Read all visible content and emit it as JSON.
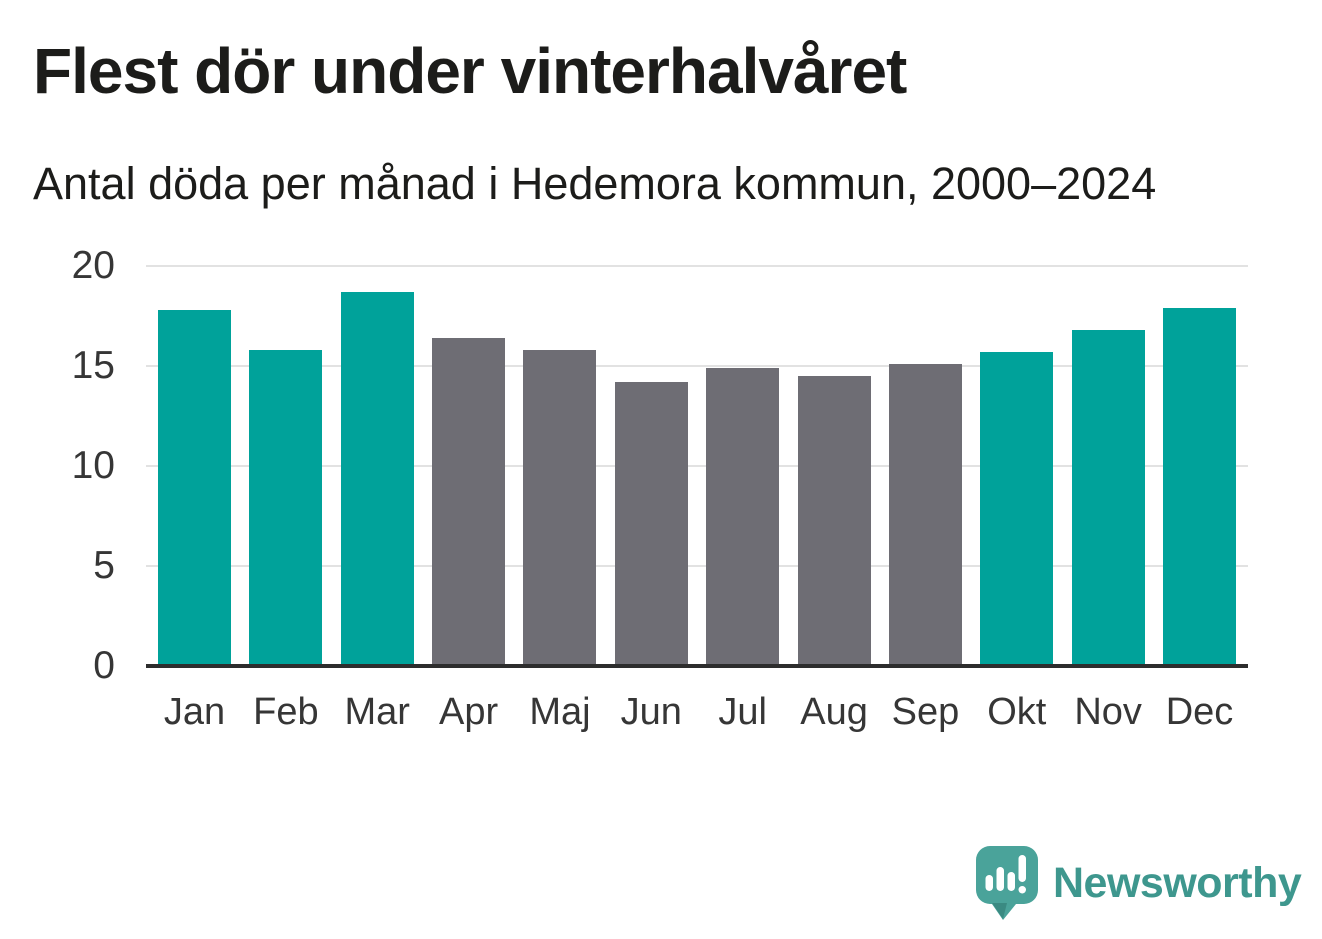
{
  "title": "Flest dör under vinterhalvåret",
  "subtitle": "Antal döda per månad i Hedemora kommun, 2000–2024",
  "brand": {
    "name": "Newsworthy",
    "logo_icon": "speech-bubble-bar-chart-icon"
  },
  "colors": {
    "winter": "#00a29a",
    "summer": "#6e6d74",
    "grid": "#e2e2e2",
    "axis": "#2d2d2d",
    "text": "#1c1c1a",
    "tick": "#363636",
    "brand_teal": "#3e978e",
    "logo_bubble": "#4aa39a",
    "logo_bubble_shade": "#3a8a82",
    "logo_glyphs": "#ffffff"
  },
  "chart_data": {
    "type": "bar",
    "title": "Flest dör under vinterhalvåret",
    "subtitle": "Antal döda per månad i Hedemora kommun, 2000–2024",
    "categories": [
      "Jan",
      "Feb",
      "Mar",
      "Apr",
      "Maj",
      "Jun",
      "Jul",
      "Aug",
      "Sep",
      "Okt",
      "Nov",
      "Dec"
    ],
    "values": [
      17.8,
      15.8,
      18.7,
      16.4,
      15.8,
      14.2,
      14.9,
      14.5,
      15.1,
      15.7,
      16.8,
      17.9
    ],
    "series_colors": [
      "winter",
      "winter",
      "winter",
      "summer",
      "summer",
      "summer",
      "summer",
      "summer",
      "summer",
      "winter",
      "winter",
      "winter"
    ],
    "xlabel": "",
    "ylabel": "",
    "ylim": [
      0,
      20
    ],
    "yticks": [
      0,
      5,
      10,
      15,
      20
    ],
    "grid": "horizontal",
    "legend": "none"
  }
}
